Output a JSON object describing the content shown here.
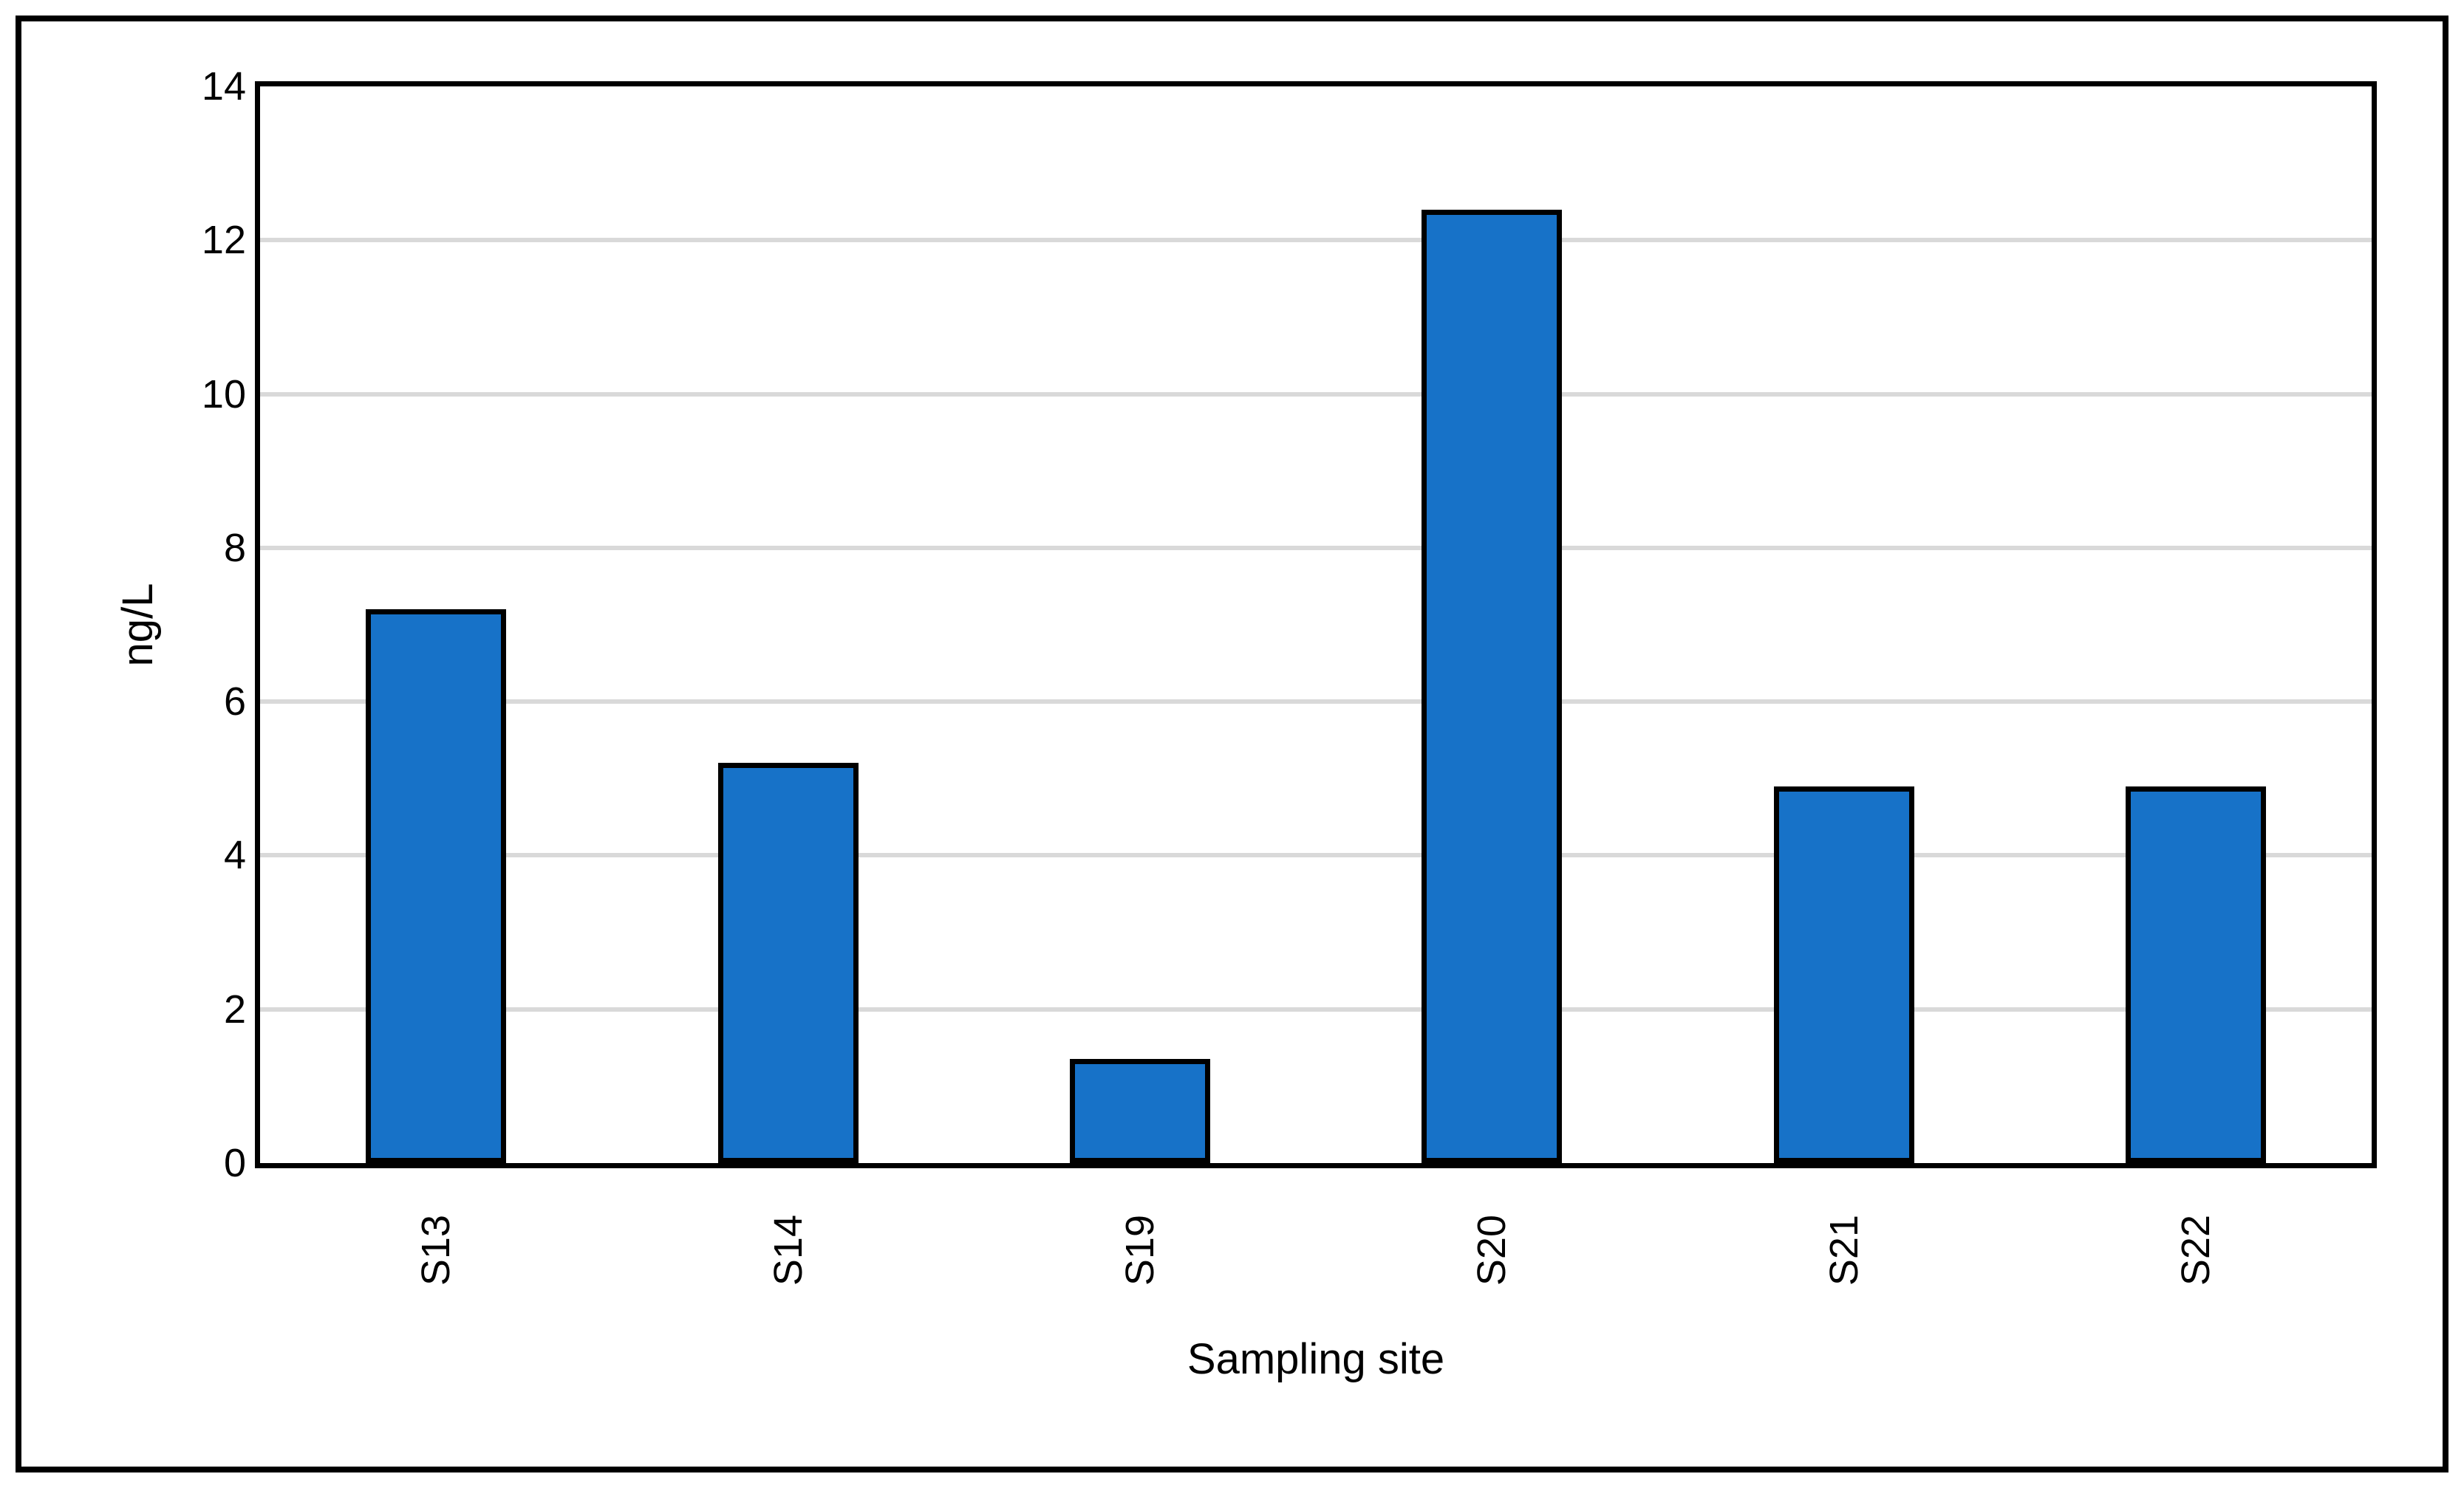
{
  "chart_data": {
    "type": "bar",
    "categories": [
      "S13",
      "S14",
      "S19",
      "S20",
      "S21",
      "S22"
    ],
    "values": [
      7.2,
      5.2,
      1.35,
      12.4,
      4.9,
      4.9
    ],
    "title": "",
    "xlabel": "Sampling site",
    "ylabel": "ng/L",
    "ylim": [
      0,
      14
    ],
    "yticks": [
      0,
      2,
      4,
      6,
      8,
      10,
      12,
      14
    ],
    "grid": "horizontal-only",
    "legend": "none",
    "colors": {
      "bar_fill": "#1772C8",
      "bar_border": "#000000",
      "gridline": "#D9D9D9",
      "axis_frame": "#000000",
      "text": "#000000",
      "background": "#FFFFFF",
      "figure_border": "#000000"
    }
  }
}
